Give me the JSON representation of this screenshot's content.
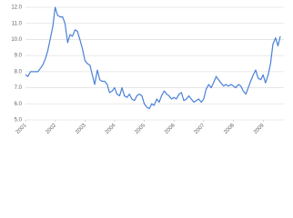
{
  "chart_data": {
    "type": "line",
    "x": [
      2001,
      2001.08,
      2001.17,
      2001.25,
      2001.33,
      2001.42,
      2001.5,
      2001.58,
      2001.67,
      2001.75,
      2001.83,
      2001.92,
      2002,
      2002.08,
      2002.17,
      2002.25,
      2002.33,
      2002.42,
      2002.5,
      2002.58,
      2002.67,
      2002.75,
      2002.83,
      2002.92,
      2003,
      2003.08,
      2003.17,
      2003.25,
      2003.33,
      2003.42,
      2003.5,
      2003.58,
      2003.67,
      2003.75,
      2003.83,
      2003.92,
      2004,
      2004.08,
      2004.17,
      2004.25,
      2004.33,
      2004.42,
      2004.5,
      2004.58,
      2004.67,
      2004.75,
      2004.83,
      2004.92,
      2005,
      2005.08,
      2005.17,
      2005.25,
      2005.33,
      2005.42,
      2005.5,
      2005.58,
      2005.67,
      2005.75,
      2005.83,
      2005.92,
      2006,
      2006.08,
      2006.17,
      2006.25,
      2006.33,
      2006.42,
      2006.5,
      2006.58,
      2006.67,
      2006.75,
      2006.83,
      2006.92,
      2007,
      2007.08,
      2007.17,
      2007.25,
      2007.33,
      2007.42,
      2007.5,
      2007.58,
      2007.67,
      2007.75,
      2007.83,
      2007.92,
      2008,
      2008.08,
      2008.17,
      2008.25,
      2008.33,
      2008.42,
      2008.5,
      2008.58,
      2008.67,
      2008.75,
      2008.83,
      2008.92,
      2009,
      2009.08,
      2009.17,
      2009.25,
      2009.33,
      2009.42,
      2009.5,
      2009.58
    ],
    "series": [
      {
        "color": "#4a80d8",
        "values": [
          7.8,
          7.7,
          8.0,
          8.0,
          8.0,
          8.0,
          8.2,
          8.4,
          8.8,
          9.3,
          10.0,
          10.8,
          12.0,
          11.5,
          11.4,
          11.4,
          11.0,
          9.8,
          10.3,
          10.2,
          10.6,
          10.5,
          10.0,
          9.4,
          8.7,
          8.5,
          8.4,
          7.8,
          7.2,
          8.1,
          7.5,
          7.4,
          7.4,
          7.2,
          6.7,
          6.8,
          7.0,
          6.6,
          6.5,
          7.0,
          6.5,
          6.4,
          6.6,
          6.3,
          6.2,
          6.5,
          6.6,
          6.5,
          6.0,
          5.8,
          5.7,
          6.0,
          5.9,
          6.3,
          6.1,
          6.5,
          6.8,
          6.6,
          6.5,
          6.3,
          6.4,
          6.3,
          6.6,
          6.7,
          6.2,
          6.3,
          6.5,
          6.3,
          6.1,
          6.2,
          6.3,
          6.1,
          6.3,
          6.9,
          7.2,
          7.0,
          7.3,
          7.7,
          7.5,
          7.3,
          7.1,
          7.2,
          7.1,
          7.2,
          7.1,
          7.0,
          7.2,
          7.1,
          6.8,
          6.6,
          7.0,
          7.4,
          7.8,
          8.1,
          7.6,
          7.5,
          7.8,
          7.3,
          7.8,
          8.5,
          9.7,
          10.1,
          9.6,
          10.2
        ]
      }
    ],
    "xlim": [
      2001,
      2009.7
    ],
    "xticks": [
      2001,
      2002,
      2003,
      2004,
      2005,
      2006,
      2007,
      2008,
      2009
    ],
    "ylim": [
      5,
      12
    ],
    "yticks": [
      {
        "value": 5,
        "label": "5.0"
      },
      {
        "value": 6,
        "label": "6.0"
      },
      {
        "value": 7,
        "label": "7.0"
      },
      {
        "value": 8,
        "label": "8.0"
      },
      {
        "value": 9,
        "label": "9.0"
      },
      {
        "value": 10,
        "label": "10.0"
      },
      {
        "value": 11,
        "label": "11.0"
      },
      {
        "value": 12,
        "label": "12.0"
      }
    ],
    "grid": true
  }
}
